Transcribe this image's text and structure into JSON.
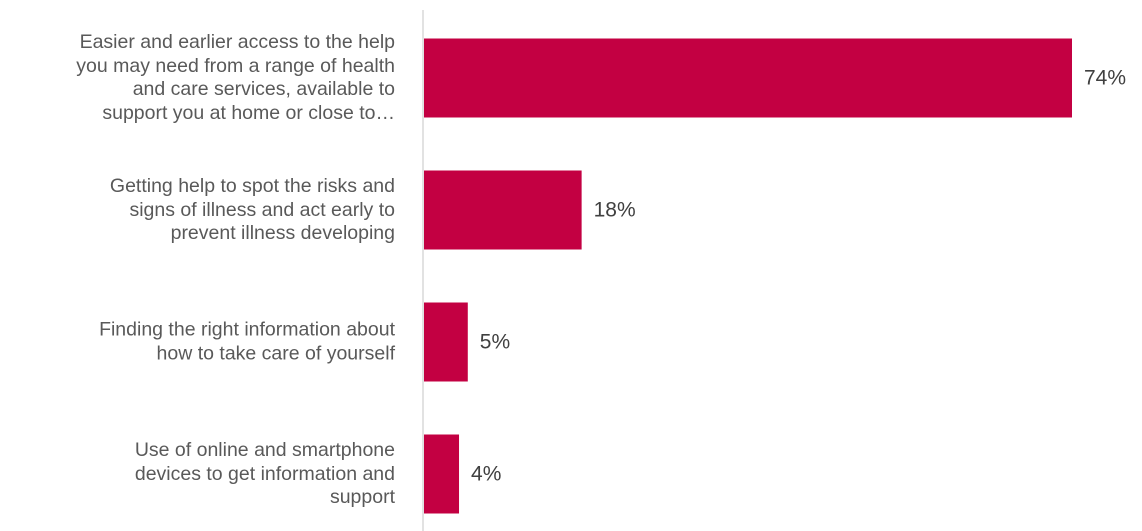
{
  "chart_data": {
    "type": "bar",
    "orientation": "horizontal",
    "title": "",
    "xlabel": "",
    "ylabel": "",
    "grid": false,
    "xlim": [
      0,
      74
    ],
    "categories": [
      "Easier and earlier access to the help you may need from a range of health and care services, available to support you at home or close to…",
      "Getting help to spot the risks and signs of illness and act early to prevent illness developing",
      "Finding the right information about how to take care of yourself",
      "Use of online and smartphone devices to get information and support"
    ],
    "category_lines": [
      [
        "Easier and earlier access to the help",
        "you may need from a range of health",
        "and care services, available to",
        "support you at home or close to…"
      ],
      [
        "Getting help to spot the risks and",
        "signs of illness and act early to",
        "prevent illness developing"
      ],
      [
        "Finding the right information about",
        "how to take care of yourself"
      ],
      [
        "Use of online and smartphone",
        "devices to get information and",
        "support"
      ]
    ],
    "values": [
      74,
      18,
      5,
      4
    ],
    "data_labels": [
      "74%",
      "18%",
      "5%",
      "4%"
    ],
    "bar_color": "#C30042",
    "axis_color": "#D9D9D9"
  }
}
